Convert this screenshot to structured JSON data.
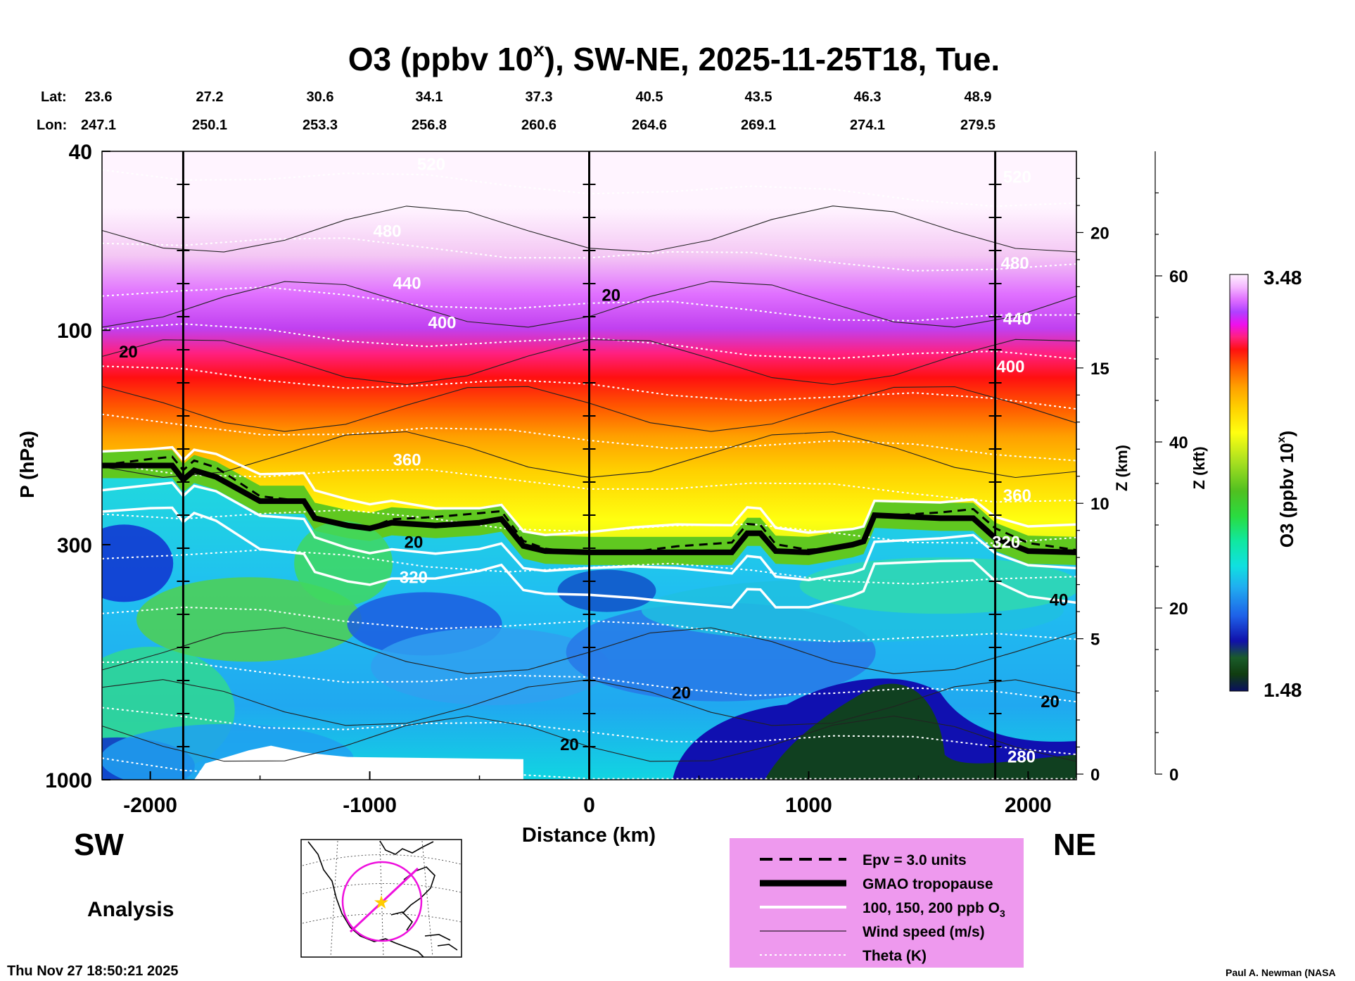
{
  "chart_data": {
    "type": "heatmap",
    "title": "O3 (ppbv 10ˣ), SW-NE, 2025-11-25T18, Tue.",
    "title_parts": {
      "pre": "O3 (ppbv 10",
      "sup": "x",
      "post": "), SW-NE, 2025-11-25T18, Tue."
    },
    "xlabel": "Distance (km)",
    "ylabel": "P (hPa)",
    "zlabel_km": "Z (km)",
    "zlabel_kft": "Z (kft)",
    "xlim": [
      -2220,
      2220
    ],
    "ylim": [
      1000,
      40
    ],
    "x_ticks": [
      {
        "value": -2000,
        "label": "-2000"
      },
      {
        "value": -1000,
        "label": "-1000"
      },
      {
        "value": 0,
        "label": "0"
      },
      {
        "value": 1000,
        "label": "1000"
      },
      {
        "value": 2000,
        "label": "2000"
      }
    ],
    "y_ticks": [
      {
        "value": 40,
        "label": "40"
      },
      {
        "value": 100,
        "label": "100"
      },
      {
        "value": 300,
        "label": "300"
      },
      {
        "value": 1000,
        "label": "1000"
      }
    ],
    "z_km_ticks": [
      {
        "value": 0,
        "label": "0"
      },
      {
        "value": 5,
        "label": "5"
      },
      {
        "value": 10,
        "label": "10"
      },
      {
        "value": 15,
        "label": "15"
      },
      {
        "value": 20,
        "label": "20"
      }
    ],
    "z_kft_ticks": [
      {
        "value": 0,
        "label": "0"
      },
      {
        "value": 20,
        "label": "20"
      },
      {
        "value": 40,
        "label": "40"
      },
      {
        "value": 60,
        "label": "60"
      }
    ],
    "lat_label": "Lat:",
    "lon_label": "Lon:",
    "latlon_columns": [
      {
        "lat": "23.6",
        "lon": "247.1"
      },
      {
        "lat": "27.2",
        "lon": "250.1"
      },
      {
        "lat": "30.6",
        "lon": "253.3"
      },
      {
        "lat": "34.1",
        "lon": "256.8"
      },
      {
        "lat": "37.3",
        "lon": "260.6"
      },
      {
        "lat": "40.5",
        "lon": "264.6"
      },
      {
        "lat": "43.5",
        "lon": "269.1"
      },
      {
        "lat": "46.3",
        "lon": "274.1"
      },
      {
        "lat": "48.9",
        "lon": "279.5"
      }
    ],
    "vertical_lines_km": [
      -1850,
      0,
      1850
    ],
    "colorbar": {
      "min_label": "1.48",
      "max_label": "3.48",
      "label_pre": "O3 (ppbv 10",
      "label_sup": "x",
      "label_post": ")"
    },
    "tropopause": {
      "x": [
        -2220,
        -2000,
        -1900,
        -1850,
        -1800,
        -1700,
        -1500,
        -1300,
        -1250,
        -1100,
        -1000,
        -900,
        -700,
        -500,
        -400,
        -300,
        -200,
        0,
        200,
        400,
        650,
        720,
        780,
        850,
        1000,
        1200,
        1250,
        1300,
        1600,
        1750,
        1850,
        2000,
        2220
      ],
      "p": [
        200,
        200,
        200,
        215,
        205,
        212,
        240,
        240,
        262,
        272,
        276,
        268,
        272,
        268,
        263,
        302,
        310,
        312,
        312,
        312,
        312,
        283,
        283,
        310,
        312,
        300,
        295,
        258,
        262,
        262,
        290,
        310,
        312
      ]
    },
    "theta_labels": [
      {
        "text": "520",
        "x": -720,
        "p": 44
      },
      {
        "text": "520",
        "x": 1950,
        "p": 47
      },
      {
        "text": "480",
        "x": -920,
        "p": 62
      },
      {
        "text": "480",
        "x": 1940,
        "p": 73
      },
      {
        "text": "440",
        "x": -830,
        "p": 81
      },
      {
        "text": "440",
        "x": 1950,
        "p": 97
      },
      {
        "text": "400",
        "x": -670,
        "p": 99
      },
      {
        "text": "400",
        "x": 1920,
        "p": 124
      },
      {
        "text": "360",
        "x": -830,
        "p": 200
      },
      {
        "text": "360",
        "x": 1950,
        "p": 240
      },
      {
        "text": "320",
        "x": -800,
        "p": 365
      },
      {
        "text": "320",
        "x": 1900,
        "p": 305
      },
      {
        "text": "280",
        "x": 1970,
        "p": 915
      }
    ],
    "wind_labels": [
      {
        "text": "20",
        "x": -2100,
        "p": 115
      },
      {
        "text": "20",
        "x": 100,
        "p": 86
      },
      {
        "text": "20",
        "x": -800,
        "p": 305
      },
      {
        "text": "20",
        "x": 420,
        "p": 660
      },
      {
        "text": "20",
        "x": -90,
        "p": 860
      },
      {
        "text": "40",
        "x": 2140,
        "p": 410
      },
      {
        "text": "20",
        "x": 2100,
        "p": 690
      }
    ],
    "legend": {
      "items": [
        {
          "label": "Epv = 3.0 units",
          "style": "dashed"
        },
        {
          "label": "GMAO tropopause",
          "style": "thick"
        },
        {
          "label": "100, 150, 200 ppb O",
          "sub": "3",
          "style": "white"
        },
        {
          "label": "Wind speed (m/s)",
          "style": "thin"
        },
        {
          "label": "Theta (K)",
          "style": "dotted"
        }
      ],
      "background": "#ee99ee"
    },
    "direction_left": "SW",
    "direction_right": "NE",
    "analysis_label": "Analysis",
    "timestamp": "Thu Nov 27 18:50:21 2025",
    "credit": "Paul A. Newman (NASA"
  }
}
